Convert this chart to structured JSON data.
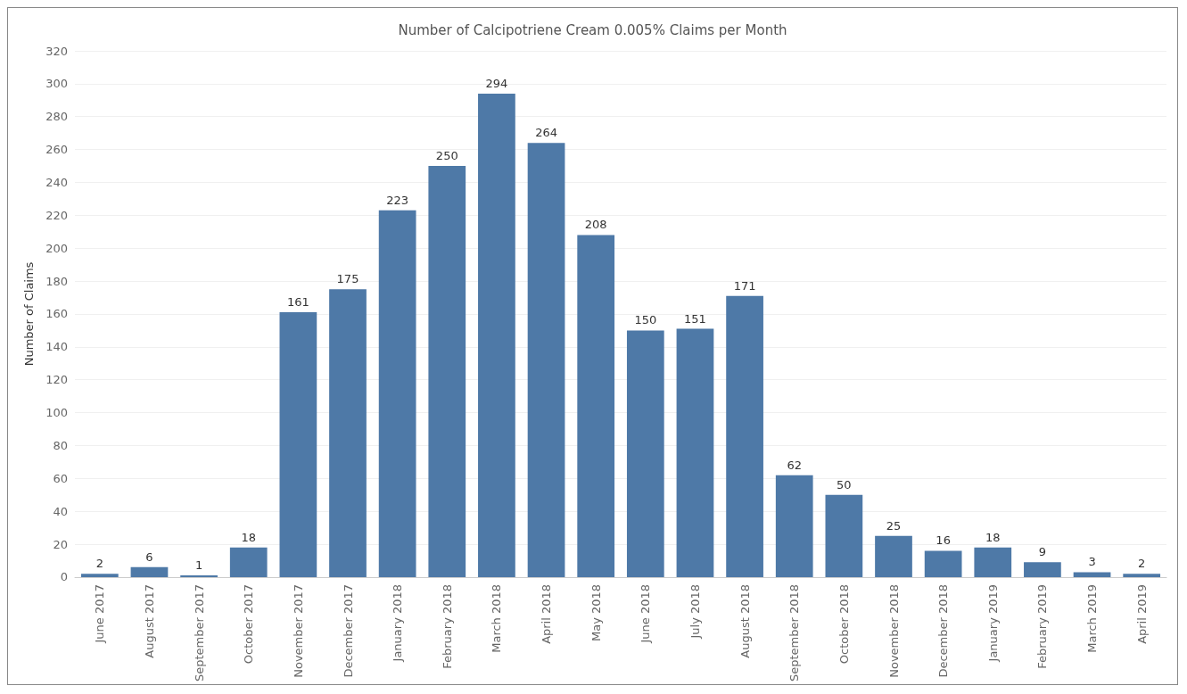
{
  "chart_data": {
    "type": "bar",
    "title": "Number of Calcipotriene Cream 0.005% Claims per Month",
    "ylabel": "Number of Claims",
    "categories": [
      "June 2017",
      "August 2017",
      "September 2017",
      "October 2017",
      "November 2017",
      "December 2017",
      "January 2018",
      "February 2018",
      "March 2018",
      "April 2018",
      "May 2018",
      "June 2018",
      "July 2018",
      "August 2018",
      "September 2018",
      "October 2018",
      "November 2018",
      "December 2018",
      "January 2019",
      "February 2019",
      "March 2019",
      "April 2019"
    ],
    "values": [
      2,
      6,
      1,
      18,
      161,
      175,
      223,
      250,
      294,
      264,
      208,
      150,
      151,
      171,
      62,
      50,
      25,
      16,
      18,
      9,
      3,
      2
    ],
    "color": "#4e79a7",
    "ylim": [
      0,
      320
    ],
    "yticks": [
      0,
      20,
      40,
      60,
      80,
      100,
      120,
      140,
      160,
      180,
      200,
      220,
      240,
      260,
      280,
      300,
      320
    ],
    "grid": "y",
    "data_labels": true
  }
}
